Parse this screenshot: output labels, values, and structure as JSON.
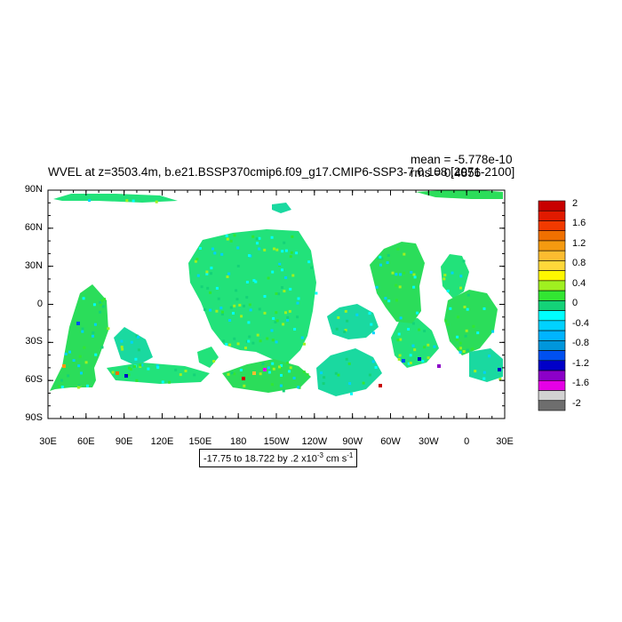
{
  "title": "WVEL at z=3503.4m, b.e21.BSSP370cmip6.f09_g17.CMIP6-SSP3-7.0.108 [2071-2100]",
  "stats": {
    "mean": "mean = -5.778e-10",
    "rms": "rms = 0.4856"
  },
  "range_label": {
    "text": "-17.75 to 18.722 by .2 x10",
    "exponent": "-3",
    "units": " cm s",
    "units_exp": "-1"
  },
  "lat_ticks": [
    "90N",
    "60N",
    "30N",
    "0",
    "30S",
    "60S",
    "90S"
  ],
  "lon_ticks": [
    "30E",
    "60E",
    "90E",
    "120E",
    "150E",
    "180",
    "150W",
    "120W",
    "90W",
    "60W",
    "30W",
    "0",
    "30E"
  ],
  "colorbar": {
    "labels": [
      "2",
      "1.6",
      "1.2",
      "0.8",
      "0.4",
      "0",
      "-0.4",
      "-0.8",
      "-1.2",
      "-1.6",
      "-2"
    ],
    "colors": [
      "#c80000",
      "#e11a00",
      "#f23a00",
      "#f07000",
      "#f59a10",
      "#fcbc30",
      "#ffd83a",
      "#fff700",
      "#a0f020",
      "#32e632",
      "#14d278",
      "#00ffff",
      "#00d2ff",
      "#00b4ff",
      "#0096dc",
      "#0050f0",
      "#0000c8",
      "#8c00c8",
      "#e600e6",
      "#d2d2d2",
      "#6e6e6e"
    ]
  }
}
